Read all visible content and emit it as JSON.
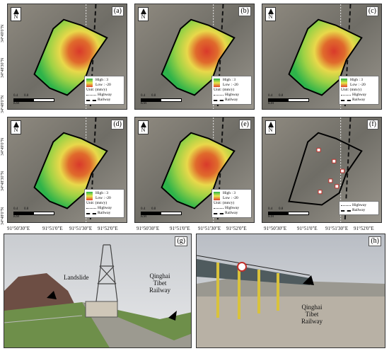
{
  "panels": {
    "a": {
      "label": "(a)",
      "type": "map"
    },
    "b": {
      "label": "(b)",
      "type": "map"
    },
    "c": {
      "label": "(c)",
      "type": "map"
    },
    "d": {
      "label": "(d)",
      "type": "map"
    },
    "e": {
      "label": "(e)",
      "type": "map"
    },
    "f": {
      "label": "(f)",
      "type": "map"
    }
  },
  "legend": {
    "high": "High : 3",
    "low": "Low : -20",
    "unit": "Unit: (mm/y)",
    "highway": "Highway",
    "railway": "Railway"
  },
  "scale": {
    "left": "0.4",
    "right": "0.8",
    "unit": "KM"
  },
  "north": "N",
  "latitudes": [
    "34°49'0\"N",
    "34°48'30\"N",
    "34°48'0\"N"
  ],
  "longitudes": [
    "91°50'30\"E",
    "91°51'0\"E",
    "91°51'30\"E",
    "91°52'0\"E"
  ],
  "photos": {
    "g": {
      "label": "(g)",
      "landslide": "Landslide",
      "railway": "Qinghai\nTibet\nRailway"
    },
    "h": {
      "label": "(h)",
      "railway": "Qinghai\nTibet\nRailway"
    }
  },
  "colors": {
    "high": "#2db34a",
    "mid": "#e7e94a",
    "low": "#e0432f",
    "boundary": "#000000"
  }
}
